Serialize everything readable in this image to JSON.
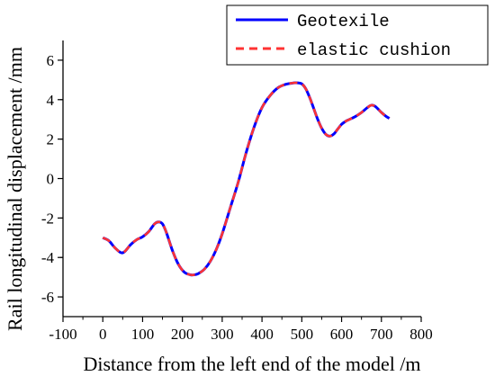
{
  "chart_data": {
    "type": "line",
    "title": "",
    "xlabel": "Distance from the left end of the model /m",
    "ylabel": "Rail longitudinal displacement /mm",
    "xlim": [
      -100,
      800
    ],
    "ylim": [
      -7,
      7
    ],
    "x_ticks": [
      -100,
      0,
      100,
      200,
      300,
      400,
      500,
      600,
      700,
      800
    ],
    "y_ticks": [
      -6,
      -4,
      -2,
      0,
      2,
      4,
      6
    ],
    "grid": false,
    "legend_position": "top-right",
    "series": [
      {
        "name": "Geotexile",
        "color": "#0000ff",
        "style": "solid",
        "x": [
          0,
          15,
          30,
          45,
          55,
          70,
          85,
          100,
          115,
          130,
          140,
          150,
          160,
          175,
          190,
          205,
          220,
          230,
          240,
          255,
          270,
          285,
          300,
          320,
          340,
          360,
          380,
          400,
          420,
          440,
          460,
          480,
          490,
          500,
          510,
          520,
          530,
          540,
          550,
          560,
          570,
          580,
          590,
          600,
          610,
          620,
          635,
          650,
          665,
          675,
          685,
          700,
          712,
          720
        ],
        "y": [
          -3.0,
          -3.15,
          -3.5,
          -3.75,
          -3.7,
          -3.35,
          -3.1,
          -2.95,
          -2.7,
          -2.3,
          -2.2,
          -2.3,
          -2.75,
          -3.65,
          -4.35,
          -4.75,
          -4.88,
          -4.88,
          -4.82,
          -4.6,
          -4.2,
          -3.6,
          -2.8,
          -1.5,
          -0.2,
          1.3,
          2.6,
          3.6,
          4.2,
          4.6,
          4.78,
          4.85,
          4.85,
          4.8,
          4.55,
          4.1,
          3.55,
          3.0,
          2.55,
          2.25,
          2.15,
          2.25,
          2.5,
          2.75,
          2.9,
          3.0,
          3.15,
          3.35,
          3.6,
          3.72,
          3.65,
          3.35,
          3.15,
          3.05
        ]
      },
      {
        "name": "elastic cushion",
        "color": "#ff3333",
        "style": "dashed",
        "x": [
          0,
          15,
          30,
          45,
          55,
          70,
          85,
          100,
          115,
          130,
          140,
          150,
          160,
          175,
          190,
          205,
          220,
          230,
          240,
          255,
          270,
          285,
          300,
          320,
          340,
          360,
          380,
          400,
          420,
          440,
          460,
          480,
          490,
          500,
          510,
          520,
          530,
          540,
          550,
          560,
          570,
          580,
          590,
          600,
          610,
          620,
          635,
          650,
          665,
          675,
          685,
          700,
          712,
          720
        ],
        "y": [
          -3.0,
          -3.15,
          -3.5,
          -3.75,
          -3.7,
          -3.35,
          -3.1,
          -2.95,
          -2.7,
          -2.3,
          -2.2,
          -2.3,
          -2.75,
          -3.65,
          -4.35,
          -4.75,
          -4.88,
          -4.88,
          -4.82,
          -4.6,
          -4.2,
          -3.6,
          -2.8,
          -1.5,
          -0.2,
          1.3,
          2.6,
          3.6,
          4.2,
          4.6,
          4.78,
          4.85,
          4.85,
          4.8,
          4.55,
          4.1,
          3.55,
          3.0,
          2.55,
          2.25,
          2.15,
          2.25,
          2.5,
          2.75,
          2.9,
          3.0,
          3.15,
          3.35,
          3.6,
          3.72,
          3.65,
          3.35,
          3.15,
          3.05
        ]
      }
    ]
  }
}
